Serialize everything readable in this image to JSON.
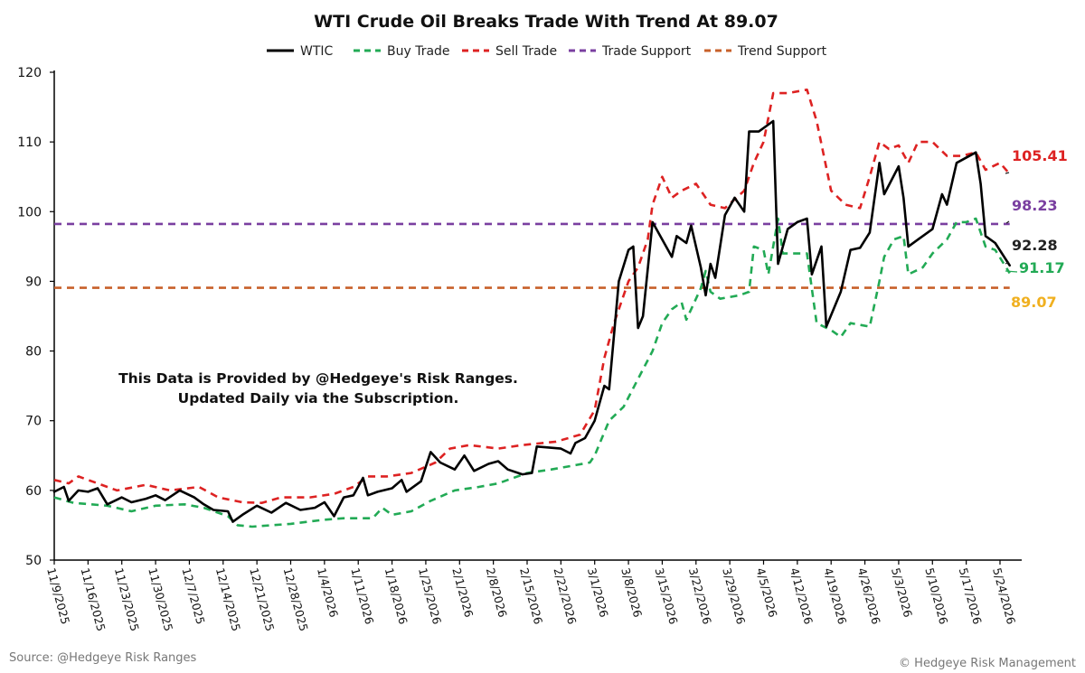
{
  "colors": {
    "wtic": "#000000",
    "buy_trade": "#22aa55",
    "sell_trade": "#dd2222",
    "trade_support": "#7a3fa0",
    "trend_support": "#c8602a",
    "label_wtic": "#222222",
    "label_buy": "#22aa55",
    "label_sell": "#dd2222",
    "label_trade_support": "#7a3fa0",
    "label_trend_support": "#f0b020"
  },
  "chart_data": {
    "type": "line",
    "title": "WTI Crude Oil Breaks Trade With Trend At 89.07",
    "xlabel": "",
    "ylabel": "",
    "ylim": [
      50,
      120
    ],
    "yticks": [
      50,
      60,
      70,
      80,
      90,
      100,
      110,
      120
    ],
    "x_start": "2025-11-09",
    "x_end": "2026-05-27",
    "xticks": [
      "11/9/2025",
      "11/16/2025",
      "11/23/2025",
      "11/30/2025",
      "12/7/2025",
      "12/14/2025",
      "12/21/2025",
      "12/28/2025",
      "1/4/2026",
      "1/11/2026",
      "1/18/2026",
      "1/25/2026",
      "2/1/2026",
      "2/8/2026",
      "2/15/2026",
      "2/22/2026",
      "3/1/2026",
      "3/8/2026",
      "3/15/2026",
      "3/22/2026",
      "3/29/2026",
      "4/5/2026",
      "4/12/2026",
      "4/19/2026",
      "4/26/2026",
      "5/3/2026",
      "5/10/2026",
      "5/17/2026",
      "5/24/2026"
    ],
    "grid": false,
    "legend_position": "top-center",
    "legend": [
      "WTIC",
      "Buy Trade",
      "Sell Trade",
      "Trade Support",
      "Trend Support"
    ],
    "series": [
      {
        "name": "WTIC",
        "style": "solid",
        "points": [
          [
            "2025-11-09",
            59.8
          ],
          [
            "2025-11-11",
            60.5
          ],
          [
            "2025-11-12",
            58.5
          ],
          [
            "2025-11-14",
            60.0
          ],
          [
            "2025-11-16",
            59.8
          ],
          [
            "2025-11-18",
            60.3
          ],
          [
            "2025-11-20",
            58.0
          ],
          [
            "2025-11-23",
            59.0
          ],
          [
            "2025-11-25",
            58.3
          ],
          [
            "2025-11-28",
            58.8
          ],
          [
            "2025-11-30",
            59.3
          ],
          [
            "2025-12-02",
            58.6
          ],
          [
            "2025-12-05",
            60.0
          ],
          [
            "2025-12-08",
            59.0
          ],
          [
            "2025-12-10",
            58.0
          ],
          [
            "2025-12-12",
            57.2
          ],
          [
            "2025-12-15",
            57.0
          ],
          [
            "2025-12-16",
            55.5
          ],
          [
            "2025-12-18",
            56.5
          ],
          [
            "2025-12-21",
            57.8
          ],
          [
            "2025-12-24",
            56.8
          ],
          [
            "2025-12-27",
            58.2
          ],
          [
            "2025-12-30",
            57.2
          ],
          [
            "2026-01-02",
            57.5
          ],
          [
            "2026-01-04",
            58.3
          ],
          [
            "2026-01-06",
            56.3
          ],
          [
            "2026-01-08",
            59.0
          ],
          [
            "2026-01-10",
            59.3
          ],
          [
            "2026-01-12",
            61.8
          ],
          [
            "2026-01-13",
            59.3
          ],
          [
            "2026-01-15",
            59.8
          ],
          [
            "2026-01-18",
            60.3
          ],
          [
            "2026-01-20",
            61.5
          ],
          [
            "2026-01-21",
            59.8
          ],
          [
            "2026-01-24",
            61.3
          ],
          [
            "2026-01-26",
            65.5
          ],
          [
            "2026-01-28",
            64.0
          ],
          [
            "2026-01-31",
            63.0
          ],
          [
            "2026-02-02",
            65.0
          ],
          [
            "2026-02-04",
            62.8
          ],
          [
            "2026-02-07",
            63.8
          ],
          [
            "2026-02-09",
            64.2
          ],
          [
            "2026-02-11",
            63.0
          ],
          [
            "2026-02-14",
            62.3
          ],
          [
            "2026-02-16",
            62.5
          ],
          [
            "2026-02-17",
            66.3
          ],
          [
            "2026-02-22",
            66.0
          ],
          [
            "2026-02-24",
            65.3
          ],
          [
            "2026-02-25",
            66.8
          ],
          [
            "2026-02-27",
            67.5
          ],
          [
            "2026-03-01",
            70.0
          ],
          [
            "2026-03-03",
            75.0
          ],
          [
            "2026-03-04",
            74.5
          ],
          [
            "2026-03-06",
            90.0
          ],
          [
            "2026-03-08",
            94.5
          ],
          [
            "2026-03-09",
            95.0
          ],
          [
            "2026-03-10",
            83.3
          ],
          [
            "2026-03-11",
            85.0
          ],
          [
            "2026-03-13",
            98.5
          ],
          [
            "2026-03-15",
            96.0
          ],
          [
            "2026-03-17",
            93.5
          ],
          [
            "2026-03-18",
            96.5
          ],
          [
            "2026-03-20",
            95.5
          ],
          [
            "2026-03-21",
            98.0
          ],
          [
            "2026-03-23",
            92.0
          ],
          [
            "2026-03-24",
            88.0
          ],
          [
            "2026-03-25",
            92.5
          ],
          [
            "2026-03-26",
            90.5
          ],
          [
            "2026-03-28",
            99.5
          ],
          [
            "2026-03-30",
            102.0
          ],
          [
            "2026-04-01",
            100.0
          ],
          [
            "2026-04-02",
            111.5
          ],
          [
            "2026-04-04",
            111.5
          ],
          [
            "2026-04-07",
            113.0
          ],
          [
            "2026-04-08",
            92.5
          ],
          [
            "2026-04-10",
            97.5
          ],
          [
            "2026-04-12",
            98.5
          ],
          [
            "2026-04-14",
            99.0
          ],
          [
            "2026-04-15",
            91.0
          ],
          [
            "2026-04-17",
            95.0
          ],
          [
            "2026-04-18",
            83.5
          ],
          [
            "2026-04-21",
            88.5
          ],
          [
            "2026-04-23",
            94.5
          ],
          [
            "2026-04-25",
            94.8
          ],
          [
            "2026-04-27",
            97.0
          ],
          [
            "2026-04-29",
            107.0
          ],
          [
            "2026-04-30",
            102.5
          ],
          [
            "2026-05-03",
            106.5
          ],
          [
            "2026-05-04",
            102.0
          ],
          [
            "2026-05-05",
            95.0
          ],
          [
            "2026-05-08",
            96.5
          ],
          [
            "2026-05-10",
            97.5
          ],
          [
            "2026-05-12",
            102.5
          ],
          [
            "2026-05-13",
            101.0
          ],
          [
            "2026-05-15",
            107.0
          ],
          [
            "2026-05-19",
            108.5
          ],
          [
            "2026-05-20",
            104.0
          ],
          [
            "2026-05-21",
            96.5
          ],
          [
            "2026-05-23",
            95.5
          ],
          [
            "2026-05-26",
            92.28
          ]
        ]
      },
      {
        "name": "Buy Trade",
        "style": "dashed",
        "points": [
          [
            "2025-11-09",
            59.0
          ],
          [
            "2025-11-13",
            58.2
          ],
          [
            "2025-11-20",
            57.8
          ],
          [
            "2025-11-25",
            57.0
          ],
          [
            "2025-11-30",
            57.8
          ],
          [
            "2025-12-06",
            58.0
          ],
          [
            "2025-12-10",
            57.5
          ],
          [
            "2025-12-15",
            56.3
          ],
          [
            "2025-12-17",
            55.0
          ],
          [
            "2025-12-20",
            54.8
          ],
          [
            "2025-12-28",
            55.2
          ],
          [
            "2026-01-04",
            55.8
          ],
          [
            "2026-01-08",
            56.0
          ],
          [
            "2026-01-14",
            56.0
          ],
          [
            "2026-01-16",
            57.5
          ],
          [
            "2026-01-18",
            56.5
          ],
          [
            "2026-01-22",
            57.0
          ],
          [
            "2026-01-26",
            58.5
          ],
          [
            "2026-01-31",
            60.0
          ],
          [
            "2026-02-05",
            60.5
          ],
          [
            "2026-02-09",
            61.0
          ],
          [
            "2026-02-15",
            62.5
          ],
          [
            "2026-02-20",
            63.0
          ],
          [
            "2026-02-24",
            63.5
          ],
          [
            "2026-02-28",
            64.0
          ],
          [
            "2026-03-01",
            65.0
          ],
          [
            "2026-03-04",
            70.0
          ],
          [
            "2026-03-07",
            72.0
          ],
          [
            "2026-03-10",
            76.0
          ],
          [
            "2026-03-13",
            80.0
          ],
          [
            "2026-03-15",
            84.0
          ],
          [
            "2026-03-17",
            86.0
          ],
          [
            "2026-03-19",
            87.0
          ],
          [
            "2026-03-20",
            84.5
          ],
          [
            "2026-03-23",
            89.0
          ],
          [
            "2026-03-24",
            91.5
          ],
          [
            "2026-03-25",
            88.5
          ],
          [
            "2026-03-27",
            87.5
          ],
          [
            "2026-03-31",
            88.0
          ],
          [
            "2026-04-02",
            88.5
          ],
          [
            "2026-04-03",
            95.0
          ],
          [
            "2026-04-05",
            94.5
          ],
          [
            "2026-04-06",
            91.0
          ],
          [
            "2026-04-08",
            99.0
          ],
          [
            "2026-04-09",
            94.0
          ],
          [
            "2026-04-14",
            94.0
          ],
          [
            "2026-04-16",
            84.0
          ],
          [
            "2026-04-19",
            83.0
          ],
          [
            "2026-04-21",
            82.0
          ],
          [
            "2026-04-23",
            84.0
          ],
          [
            "2026-04-27",
            83.5
          ],
          [
            "2026-04-29",
            90.0
          ],
          [
            "2026-04-30",
            93.5
          ],
          [
            "2026-05-02",
            96.0
          ],
          [
            "2026-05-04",
            96.5
          ],
          [
            "2026-05-05",
            91.0
          ],
          [
            "2026-05-08",
            92.0
          ],
          [
            "2026-05-10",
            94.0
          ],
          [
            "2026-05-13",
            96.0
          ],
          [
            "2026-05-15",
            98.5
          ],
          [
            "2026-05-17",
            98.5
          ],
          [
            "2026-05-19",
            99.0
          ],
          [
            "2026-05-21",
            95.0
          ],
          [
            "2026-05-23",
            94.5
          ],
          [
            "2026-05-26",
            91.17
          ]
        ]
      },
      {
        "name": "Sell Trade",
        "style": "dashed",
        "points": [
          [
            "2025-11-09",
            61.5
          ],
          [
            "2025-11-12",
            61.0
          ],
          [
            "2025-11-14",
            62.0
          ],
          [
            "2025-11-18",
            61.0
          ],
          [
            "2025-11-22",
            60.0
          ],
          [
            "2025-11-28",
            60.8
          ],
          [
            "2025-12-03",
            60.0
          ],
          [
            "2025-12-09",
            60.5
          ],
          [
            "2025-12-13",
            59.0
          ],
          [
            "2025-12-18",
            58.3
          ],
          [
            "2025-12-22",
            58.2
          ],
          [
            "2025-12-26",
            59.0
          ],
          [
            "2026-01-01",
            59.0
          ],
          [
            "2026-01-06",
            59.5
          ],
          [
            "2026-01-10",
            60.5
          ],
          [
            "2026-01-13",
            62.0
          ],
          [
            "2026-01-17",
            62.0
          ],
          [
            "2026-01-22",
            62.5
          ],
          [
            "2026-01-27",
            64.0
          ],
          [
            "2026-01-30",
            66.0
          ],
          [
            "2026-02-03",
            66.5
          ],
          [
            "2026-02-09",
            66.0
          ],
          [
            "2026-02-14",
            66.5
          ],
          [
            "2026-02-21",
            67.0
          ],
          [
            "2026-02-26",
            68.0
          ],
          [
            "2026-03-01",
            71.5
          ],
          [
            "2026-03-03",
            79.0
          ],
          [
            "2026-03-05",
            84.0
          ],
          [
            "2026-03-08",
            90.0
          ],
          [
            "2026-03-10",
            92.0
          ],
          [
            "2026-03-12",
            96.0
          ],
          [
            "2026-03-13",
            101.0
          ],
          [
            "2026-03-15",
            105.0
          ],
          [
            "2026-03-17",
            102.0
          ],
          [
            "2026-03-19",
            103.0
          ],
          [
            "2026-03-22",
            104.0
          ],
          [
            "2026-03-25",
            101.0
          ],
          [
            "2026-03-28",
            100.5
          ],
          [
            "2026-04-01",
            103.0
          ],
          [
            "2026-04-03",
            107.0
          ],
          [
            "2026-04-05",
            110.0
          ],
          [
            "2026-04-07",
            117.0
          ],
          [
            "2026-04-10",
            117.0
          ],
          [
            "2026-04-14",
            117.5
          ],
          [
            "2026-04-16",
            113.0
          ],
          [
            "2026-04-19",
            103.0
          ],
          [
            "2026-04-22",
            101.0
          ],
          [
            "2026-04-25",
            100.5
          ],
          [
            "2026-04-27",
            105.0
          ],
          [
            "2026-04-29",
            110.0
          ],
          [
            "2026-05-01",
            109.0
          ],
          [
            "2026-05-03",
            109.5
          ],
          [
            "2026-05-05",
            107.0
          ],
          [
            "2026-05-07",
            110.0
          ],
          [
            "2026-05-10",
            110.0
          ],
          [
            "2026-05-13",
            108.0
          ],
          [
            "2026-05-16",
            108.0
          ],
          [
            "2026-05-19",
            108.5
          ],
          [
            "2026-05-21",
            106.0
          ],
          [
            "2026-05-24",
            107.0
          ],
          [
            "2026-05-26",
            105.41
          ]
        ]
      },
      {
        "name": "Trade Support",
        "style": "dashed",
        "points": [
          [
            "2025-11-09",
            98.23
          ],
          [
            "2026-05-26",
            98.23
          ]
        ]
      },
      {
        "name": "Trend Support",
        "style": "dashed",
        "points": [
          [
            "2025-11-09",
            89.07
          ],
          [
            "2026-05-26",
            89.07
          ]
        ]
      }
    ],
    "end_labels": [
      {
        "text": "105.41",
        "value": 105.41
      },
      {
        "text": "98.23",
        "value": 98.23
      },
      {
        "text": "92.28",
        "value": 92.28
      },
      {
        "text": "91.17",
        "value": 91.17
      },
      {
        "text": "89.07",
        "value": 89.07
      }
    ],
    "annotation": [
      "This Data is Provided by @Hedgeye's Risk Ranges.",
      "Updated Daily via the Subscription."
    ]
  },
  "footer": {
    "source": "Source: @Hedgeye Risk Ranges",
    "copyright": "© Hedgeye Risk Management"
  }
}
